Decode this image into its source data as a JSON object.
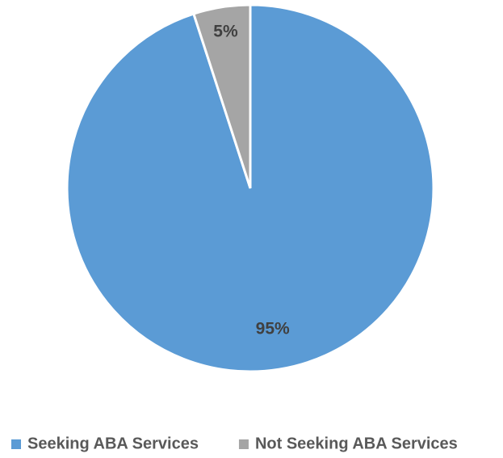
{
  "chart_data": {
    "type": "pie",
    "categories": [
      "Seeking ABA Services",
      "Not Seeking ABA Services"
    ],
    "values": [
      95,
      5
    ],
    "value_labels": [
      "95%",
      "5%"
    ],
    "colors": [
      "#5b9bd5",
      "#a5a5a5"
    ],
    "legend": "bottom"
  }
}
